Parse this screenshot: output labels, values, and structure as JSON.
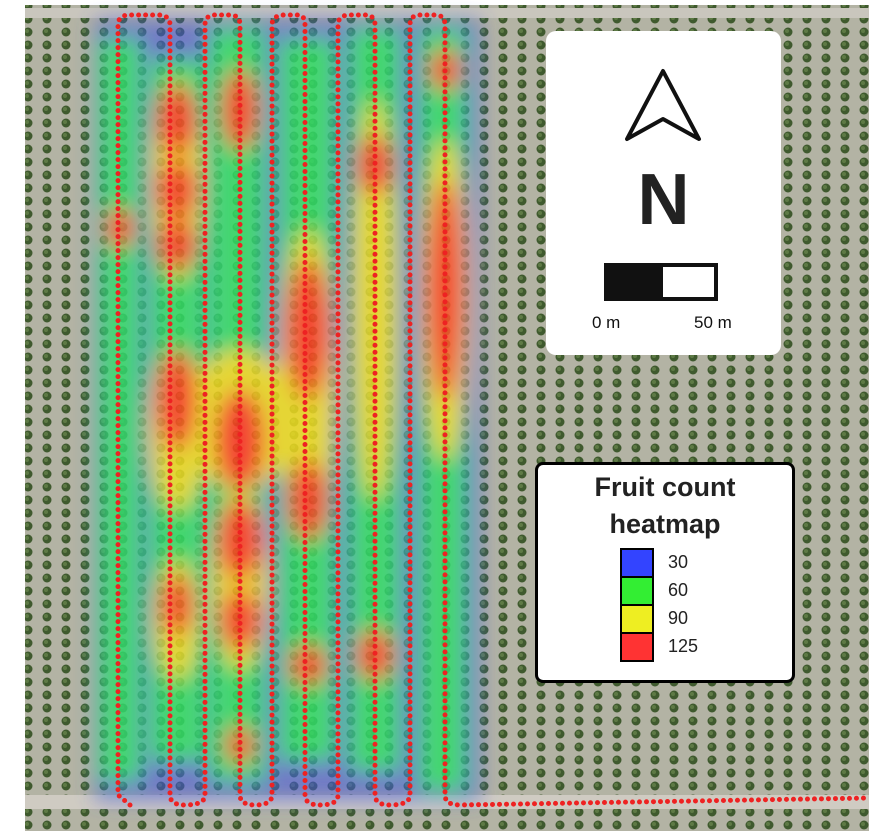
{
  "compass": {
    "label": "N"
  },
  "scale_bar": {
    "start_label": "0 m",
    "end_label": "50 m"
  },
  "legend": {
    "title": "Fruit count heatmap",
    "items": [
      {
        "value": 30,
        "color": "#3344ff"
      },
      {
        "value": 60,
        "color": "#33ee33"
      },
      {
        "value": 90,
        "color": "#eeee22"
      },
      {
        "value": 125,
        "color": "#ff3333"
      }
    ]
  }
}
